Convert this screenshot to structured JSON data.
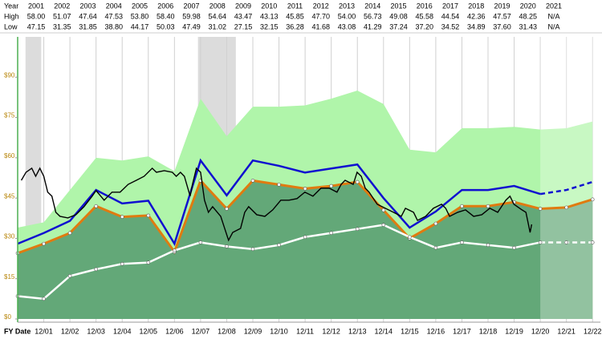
{
  "price_table": {
    "row_labels": [
      "Year",
      "High",
      "Low"
    ],
    "years": [
      "2001",
      "2002",
      "2003",
      "2004",
      "2005",
      "2006",
      "2007",
      "2008",
      "2009",
      "2010",
      "2011",
      "2012",
      "2013",
      "2014",
      "2015",
      "2016",
      "2017",
      "2018",
      "2019",
      "2020",
      "2021"
    ],
    "high": [
      "58.00",
      "51.07",
      "47.64",
      "47.53",
      "53.80",
      "58.40",
      "59.98",
      "54.64",
      "43.47",
      "43.13",
      "45.85",
      "47.70",
      "54.00",
      "56.73",
      "49.08",
      "45.58",
      "44.54",
      "42.36",
      "47.57",
      "48.25",
      "N/A"
    ],
    "low": [
      "47.15",
      "31.35",
      "31.85",
      "38.80",
      "44.17",
      "50.03",
      "47.49",
      "31.02",
      "27.15",
      "32.15",
      "36.28",
      "41.68",
      "43.08",
      "41.29",
      "37.24",
      "37.20",
      "34.52",
      "34.89",
      "37.60",
      "31.43",
      "N/A"
    ]
  },
  "chart_data": {
    "type": "line",
    "x_label": "FY Date",
    "x": [
      0,
      1,
      2,
      3,
      4,
      5,
      6,
      7,
      8,
      9,
      10,
      11,
      12,
      13,
      14,
      15,
      16,
      17,
      18,
      19,
      20,
      21,
      22
    ],
    "xlim": [
      0,
      22.3
    ],
    "xticks": [
      {
        "value": 1,
        "label": "12/01"
      },
      {
        "value": 2,
        "label": "12/02"
      },
      {
        "value": 3,
        "label": "12/03"
      },
      {
        "value": 4,
        "label": "12/04"
      },
      {
        "value": 5,
        "label": "12/05"
      },
      {
        "value": 6,
        "label": "12/06"
      },
      {
        "value": 7,
        "label": "12/07"
      },
      {
        "value": 8,
        "label": "12/08"
      },
      {
        "value": 9,
        "label": "12/09"
      },
      {
        "value": 10,
        "label": "12/10"
      },
      {
        "value": 11,
        "label": "12/11"
      },
      {
        "value": 12,
        "label": "12/12"
      },
      {
        "value": 13,
        "label": "12/13"
      },
      {
        "value": 14,
        "label": "12/14"
      },
      {
        "value": 15,
        "label": "12/15"
      },
      {
        "value": 16,
        "label": "12/16"
      },
      {
        "value": 17,
        "label": "12/17"
      },
      {
        "value": 18,
        "label": "12/18"
      },
      {
        "value": 19,
        "label": "12/19"
      },
      {
        "value": 20,
        "label": "12/20"
      },
      {
        "value": 21,
        "label": "12/21"
      },
      {
        "value": 22,
        "label": "12/22"
      }
    ],
    "ylim": [
      0,
      105
    ],
    "yticks": [
      {
        "value": 0,
        "label": "$0"
      },
      {
        "value": 15,
        "label": "$15"
      },
      {
        "value": 30,
        "label": "$30"
      },
      {
        "value": 45,
        "label": "$45"
      },
      {
        "value": 60,
        "label": "$60"
      },
      {
        "value": 75,
        "label": "$75"
      },
      {
        "value": 90,
        "label": "$90"
      }
    ],
    "grid": "x",
    "forecast_from": 20,
    "shaded_x_ranges": [
      [
        0.3,
        0.9
      ],
      [
        6.9,
        8.35
      ]
    ],
    "series": [
      {
        "kind": "area",
        "color": "#b0f5aa",
        "values": [
          34,
          36,
          48,
          60,
          59,
          60.5,
          55,
          82,
          68,
          79,
          79,
          79.5,
          82,
          85,
          80,
          63,
          62,
          71,
          71,
          71.5,
          70.5,
          71,
          73.5
        ]
      },
      {
        "kind": "area",
        "color": "#63a878",
        "edge": "#e07b10",
        "markers": true,
        "values": [
          24.5,
          28,
          32,
          42,
          38,
          38.5,
          25,
          51.5,
          41,
          51.5,
          50,
          48.5,
          49.5,
          51,
          40.5,
          30,
          35.5,
          42,
          42,
          43.5,
          41,
          41.5,
          44.5
        ]
      },
      {
        "kind": "line",
        "color": "#ffffff",
        "markers": true,
        "values": [
          8.5,
          7.5,
          16,
          18.5,
          20.5,
          21,
          25.5,
          28.5,
          27,
          26,
          27.5,
          30.5,
          32,
          33.5,
          35,
          30.5,
          26.5,
          28.5,
          27.5,
          26.5,
          28.5,
          28.5,
          28.5
        ]
      },
      {
        "kind": "line",
        "color": "#1010d0",
        "values": [
          28,
          32,
          36.5,
          48,
          43,
          44,
          28,
          59,
          46,
          59,
          57,
          54.5,
          56,
          57.5,
          45,
          34,
          40,
          48,
          48,
          49.5,
          46.5,
          48,
          51
        ]
      }
    ],
    "price": {
      "color": "#000000",
      "x": [
        0.14,
        0.32,
        0.54,
        0.69,
        0.85,
        1.0,
        1.15,
        1.31,
        1.46,
        1.62,
        1.92,
        2.23,
        2.54,
        2.85,
        3.0,
        3.31,
        3.61,
        3.92,
        4.23,
        4.54,
        4.84,
        5.15,
        5.31,
        5.61,
        5.92,
        6.07,
        6.23,
        6.38,
        6.6,
        6.69,
        6.84,
        7.0,
        7.15,
        7.3,
        7.46,
        7.77,
        8.07,
        8.23,
        8.53,
        8.69,
        8.84,
        9.15,
        9.46,
        9.76,
        10.07,
        10.38,
        10.69,
        10.99,
        11.3,
        11.61,
        11.92,
        12.22,
        12.38,
        12.53,
        12.84,
        12.99,
        13.15,
        13.3,
        13.45,
        13.76,
        14.07,
        14.38,
        14.68,
        14.84,
        15.15,
        15.3,
        15.61,
        15.91,
        16.22,
        16.38,
        16.53,
        16.84,
        17.14,
        17.45,
        17.76,
        18.07,
        18.37,
        18.68,
        18.84,
        18.99,
        19.3,
        19.45,
        19.61,
        19.67
      ],
      "values": [
        51.6,
        54.6,
        56.1,
        53.1,
        56.1,
        53.1,
        47.2,
        45.7,
        39.7,
        38.2,
        37.6,
        38.8,
        41.8,
        45.7,
        47.8,
        44.2,
        47.2,
        47.2,
        50.1,
        51.6,
        53.1,
        56.1,
        54.6,
        55.2,
        54.6,
        53.1,
        54.6,
        53.1,
        45.7,
        50.1,
        56.1,
        54.6,
        44.2,
        39.7,
        41.8,
        38.2,
        29.3,
        32.2,
        33.7,
        39.7,
        41.8,
        38.8,
        38.2,
        40.6,
        44.2,
        44.2,
        44.8,
        47.2,
        45.7,
        48.7,
        48.7,
        47.2,
        50.1,
        51.6,
        50.1,
        54.6,
        53.1,
        48.7,
        47.2,
        42.7,
        41.2,
        39.7,
        38.2,
        41.2,
        39.7,
        36.7,
        38.2,
        41.2,
        42.7,
        41.2,
        38.2,
        39.7,
        40.6,
        38.2,
        38.8,
        41.2,
        39.7,
        44.2,
        45.7,
        42.7,
        40.6,
        39.7,
        32.2,
        35.2
      ]
    }
  }
}
